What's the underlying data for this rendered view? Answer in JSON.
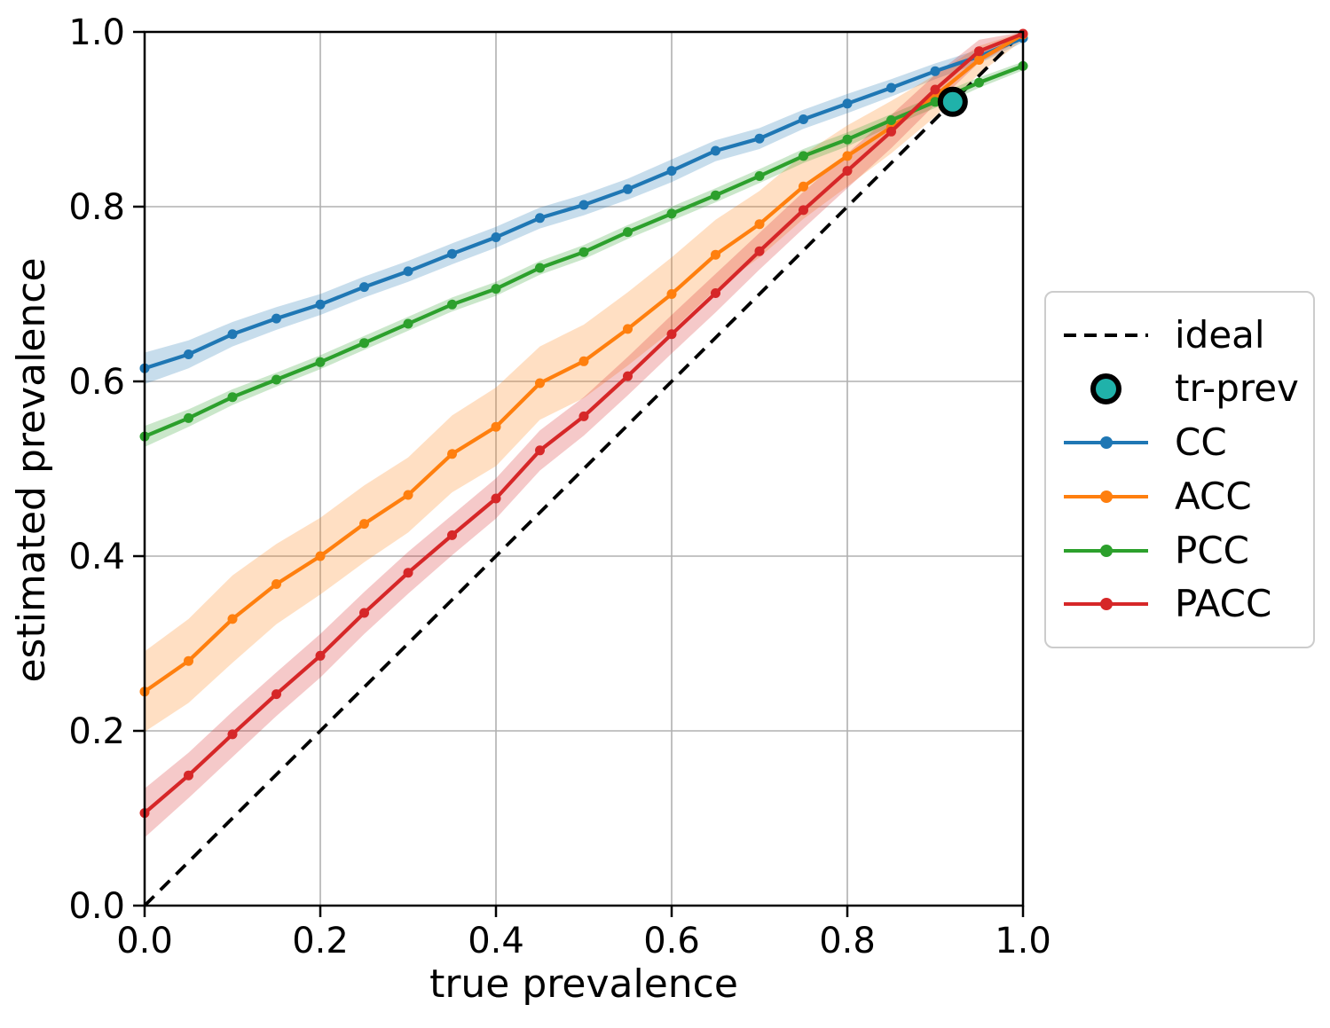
{
  "figure": {
    "background": "#ffffff",
    "grid_color": "#b0b0b0",
    "spine_color": "#000000",
    "text_color": "#000000"
  },
  "legend": {
    "position": "outside-right",
    "items": [
      {
        "label": "ideal",
        "swatch": "dashed-line",
        "color": "#000000"
      },
      {
        "label": "tr-prev",
        "swatch": "circle",
        "color": "#20b2aa",
        "edge_color": "#000000"
      },
      {
        "label": "CC",
        "swatch": "line-dot",
        "color": "#1f77b4"
      },
      {
        "label": "ACC",
        "swatch": "line-dot",
        "color": "#ff7f0e"
      },
      {
        "label": "PCC",
        "swatch": "line-dot",
        "color": "#2ca02c"
      },
      {
        "label": "PACC",
        "swatch": "line-dot",
        "color": "#d62728"
      }
    ]
  },
  "chart_data": {
    "type": "line",
    "title": "",
    "xlabel": "true prevalence",
    "ylabel": "estimated prevalence",
    "xlim": [
      0.0,
      1.0
    ],
    "ylim": [
      0.0,
      1.0
    ],
    "grid": true,
    "xticks": [
      "0.0",
      "0.2",
      "0.4",
      "0.6",
      "0.8",
      "1.0"
    ],
    "yticks": [
      "0.0",
      "0.2",
      "0.4",
      "0.6",
      "0.8",
      "1.0"
    ],
    "x": [
      0.0,
      0.05,
      0.1,
      0.15,
      0.2,
      0.25,
      0.3,
      0.35,
      0.4,
      0.45,
      0.5,
      0.55,
      0.6,
      0.65,
      0.7,
      0.75,
      0.8,
      0.85,
      0.9,
      0.95,
      1.0
    ],
    "series": [
      {
        "name": "CC",
        "color": "#1f77b4",
        "values": [
          0.615,
          0.631,
          0.654,
          0.672,
          0.688,
          0.708,
          0.726,
          0.746,
          0.765,
          0.787,
          0.802,
          0.82,
          0.841,
          0.864,
          0.878,
          0.9,
          0.918,
          0.936,
          0.955,
          0.972,
          0.993
        ],
        "band_halfwidth": [
          0.018,
          0.016,
          0.014,
          0.013,
          0.012,
          0.012,
          0.012,
          0.012,
          0.012,
          0.012,
          0.012,
          0.012,
          0.013,
          0.012,
          0.012,
          0.011,
          0.011,
          0.01,
          0.009,
          0.008,
          0.005
        ]
      },
      {
        "name": "ACC",
        "color": "#ff7f0e",
        "values": [
          0.245,
          0.28,
          0.328,
          0.368,
          0.4,
          0.437,
          0.47,
          0.517,
          0.548,
          0.598,
          0.623,
          0.66,
          0.7,
          0.745,
          0.78,
          0.823,
          0.858,
          0.891,
          0.927,
          0.968,
          0.997
        ],
        "band_halfwidth": [
          0.046,
          0.048,
          0.05,
          0.046,
          0.044,
          0.044,
          0.043,
          0.044,
          0.045,
          0.042,
          0.042,
          0.042,
          0.042,
          0.04,
          0.038,
          0.037,
          0.035,
          0.03,
          0.024,
          0.016,
          0.006
        ]
      },
      {
        "name": "PCC",
        "color": "#2ca02c",
        "values": [
          0.537,
          0.558,
          0.582,
          0.602,
          0.622,
          0.644,
          0.666,
          0.688,
          0.706,
          0.73,
          0.748,
          0.771,
          0.792,
          0.813,
          0.835,
          0.858,
          0.877,
          0.899,
          0.92,
          0.942,
          0.961
        ],
        "band_halfwidth": [
          0.012,
          0.01,
          0.009,
          0.008,
          0.008,
          0.008,
          0.008,
          0.008,
          0.008,
          0.008,
          0.008,
          0.008,
          0.008,
          0.008,
          0.008,
          0.008,
          0.008,
          0.007,
          0.007,
          0.006,
          0.005
        ]
      },
      {
        "name": "PACC",
        "color": "#d62728",
        "values": [
          0.106,
          0.149,
          0.196,
          0.242,
          0.286,
          0.335,
          0.381,
          0.424,
          0.466,
          0.521,
          0.56,
          0.606,
          0.654,
          0.701,
          0.749,
          0.796,
          0.841,
          0.886,
          0.934,
          0.978,
          0.998
        ],
        "band_halfwidth": [
          0.028,
          0.026,
          0.026,
          0.025,
          0.025,
          0.024,
          0.024,
          0.023,
          0.023,
          0.023,
          0.022,
          0.022,
          0.022,
          0.022,
          0.021,
          0.021,
          0.02,
          0.019,
          0.017,
          0.013,
          0.006
        ]
      }
    ],
    "ideal_line": {
      "label": "ideal",
      "from": [
        0.0,
        0.0
      ],
      "to": [
        1.0,
        1.0
      ],
      "style": "dashed",
      "color": "#000000"
    },
    "tr_prev_marker": {
      "label": "tr-prev",
      "x": 0.92,
      "y": 0.92,
      "fill": "#20b2aa",
      "edge": "#000000"
    }
  }
}
